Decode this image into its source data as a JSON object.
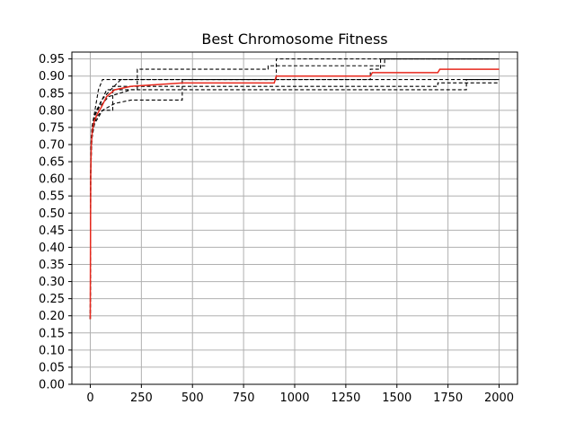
{
  "chart_data": {
    "type": "line",
    "title": "Best Chromosome Fitness",
    "xlabel": "",
    "ylabel": "",
    "xlim": [
      -90,
      2090
    ],
    "ylim": [
      0,
      0.97
    ],
    "grid": true,
    "x_ticks": [
      0,
      250,
      500,
      750,
      1000,
      1250,
      1500,
      1750,
      2000
    ],
    "y_ticks": [
      0.0,
      0.05,
      0.1,
      0.15,
      0.2,
      0.25,
      0.3,
      0.35,
      0.4,
      0.45,
      0.5,
      0.55,
      0.6,
      0.65,
      0.7,
      0.75,
      0.8,
      0.85,
      0.9,
      0.95
    ],
    "y_tick_labels": [
      "0.00",
      "0.05",
      "0.10",
      "0.15",
      "0.20",
      "0.25",
      "0.30",
      "0.35",
      "0.40",
      "0.45",
      "0.50",
      "0.55",
      "0.60",
      "0.65",
      "0.70",
      "0.75",
      "0.80",
      "0.85",
      "0.90",
      "0.95"
    ],
    "series": [
      {
        "style": "dashed",
        "color": "#000000",
        "points": [
          [
            0,
            0.19
          ],
          [
            1,
            0.55
          ],
          [
            3,
            0.7
          ],
          [
            8,
            0.75
          ],
          [
            20,
            0.79
          ],
          [
            40,
            0.86
          ],
          [
            60,
            0.89
          ],
          [
            2000,
            0.89
          ]
        ]
      },
      {
        "style": "dashed",
        "color": "#000000",
        "points": [
          [
            0,
            0.19
          ],
          [
            2,
            0.6
          ],
          [
            5,
            0.72
          ],
          [
            15,
            0.77
          ],
          [
            30,
            0.8
          ],
          [
            50,
            0.82
          ],
          [
            80,
            0.86
          ],
          [
            230,
            0.86
          ],
          [
            230,
            0.92
          ],
          [
            870,
            0.92
          ],
          [
            870,
            0.93
          ],
          [
            1440,
            0.93
          ],
          [
            1440,
            0.95
          ],
          [
            2000,
            0.95
          ]
        ]
      },
      {
        "style": "dashed",
        "color": "#000000",
        "points": [
          [
            0,
            0.19
          ],
          [
            2,
            0.62
          ],
          [
            6,
            0.71
          ],
          [
            20,
            0.76
          ],
          [
            60,
            0.8
          ],
          [
            120,
            0.82
          ],
          [
            200,
            0.83
          ],
          [
            450,
            0.83
          ],
          [
            450,
            0.89
          ],
          [
            910,
            0.89
          ],
          [
            910,
            0.95
          ],
          [
            2000,
            0.95
          ]
        ]
      },
      {
        "style": "dashed",
        "color": "#000000",
        "points": [
          [
            0,
            0.19
          ],
          [
            1,
            0.58
          ],
          [
            4,
            0.69
          ],
          [
            12,
            0.74
          ],
          [
            30,
            0.78
          ],
          [
            60,
            0.8
          ],
          [
            110,
            0.8
          ],
          [
            110,
            0.87
          ],
          [
            1700,
            0.87
          ],
          [
            1700,
            0.88
          ],
          [
            2000,
            0.88
          ]
        ]
      },
      {
        "style": "dashed",
        "color": "#000000",
        "points": [
          [
            0,
            0.19
          ],
          [
            2,
            0.61
          ],
          [
            6,
            0.72
          ],
          [
            18,
            0.78
          ],
          [
            45,
            0.81
          ],
          [
            90,
            0.84
          ],
          [
            200,
            0.86
          ],
          [
            1840,
            0.86
          ],
          [
            1840,
            0.89
          ],
          [
            2000,
            0.89
          ]
        ]
      },
      {
        "style": "dashed",
        "color": "#000000",
        "points": [
          [
            0,
            0.19
          ],
          [
            3,
            0.63
          ],
          [
            9,
            0.73
          ],
          [
            25,
            0.79
          ],
          [
            55,
            0.83
          ],
          [
            100,
            0.86
          ],
          [
            150,
            0.89
          ],
          [
            1370,
            0.89
          ],
          [
            1370,
            0.92
          ],
          [
            1420,
            0.92
          ],
          [
            1420,
            0.95
          ],
          [
            2000,
            0.95
          ]
        ]
      },
      {
        "style": "solid",
        "color": "#e8281c",
        "points": [
          [
            0,
            0.19
          ],
          [
            2,
            0.6
          ],
          [
            5,
            0.7
          ],
          [
            10,
            0.74
          ],
          [
            20,
            0.77
          ],
          [
            35,
            0.79
          ],
          [
            55,
            0.81
          ],
          [
            80,
            0.84
          ],
          [
            120,
            0.86
          ],
          [
            200,
            0.87
          ],
          [
            450,
            0.88
          ],
          [
            900,
            0.88
          ],
          [
            910,
            0.9
          ],
          [
            1370,
            0.9
          ],
          [
            1380,
            0.91
          ],
          [
            1700,
            0.91
          ],
          [
            1710,
            0.92
          ],
          [
            2000,
            0.92
          ]
        ]
      }
    ]
  }
}
